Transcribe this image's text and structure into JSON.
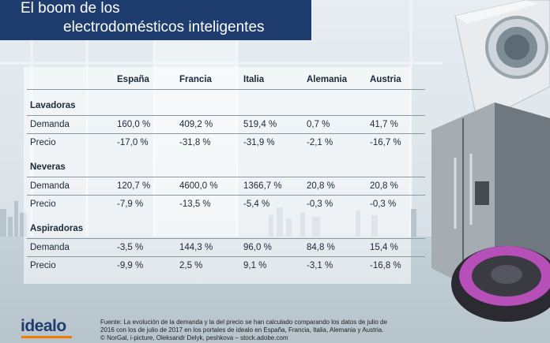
{
  "title": {
    "line1": "El boom de los",
    "line2": "electrodomésticos inteligentes"
  },
  "brand": {
    "logo": "idealo",
    "primary_color": "#1f3c6e",
    "accent_color": "#f07d00"
  },
  "source": {
    "line1": "Fuente: La evolución de la demanda y la del precio se han calculado comparando los datos de julio de",
    "line2": "2016 con los de julio de 2017 en los portales de idealo en España, Francia, Italia, Alemania y Austria.",
    "line3": "© NorGal, i-picture, Oleksandr Delyk, peshkova – stock.adobe.com"
  },
  "chart_data": {
    "type": "table",
    "columns": [
      "España",
      "Francia",
      "Italia",
      "Alemania",
      "Austria"
    ],
    "sections": [
      {
        "name": "Lavadoras",
        "rows": [
          {
            "label": "Demanda",
            "values": [
              "160,0 %",
              "409,2 %",
              "519,4 %",
              "0,7 %",
              "41,7 %"
            ]
          },
          {
            "label": "Precio",
            "values": [
              "-17,0 %",
              "-31,8 %",
              "-31,9 %",
              "-2,1 %",
              "-16,7 %"
            ]
          }
        ]
      },
      {
        "name": "Neveras",
        "rows": [
          {
            "label": "Demanda",
            "values": [
              "120,7 %",
              "4600,0 %",
              "1366,7 %",
              "20,8 %",
              "20,8 %"
            ]
          },
          {
            "label": "Precio",
            "values": [
              "-7,9 %",
              "-13,5 %",
              "-5,4 %",
              "-0,3 %",
              "-0,3 %"
            ]
          }
        ]
      },
      {
        "name": "Aspiradoras",
        "rows": [
          {
            "label": "Demanda",
            "values": [
              "-3,5 %",
              "144,3 %",
              "96,0 %",
              "84,8 %",
              "15,4 %"
            ]
          },
          {
            "label": "Precio",
            "values": [
              "-9,9 %",
              "2,5 %",
              "9,1 %",
              "-3,1 %",
              "-16,8 %"
            ]
          }
        ]
      }
    ]
  }
}
